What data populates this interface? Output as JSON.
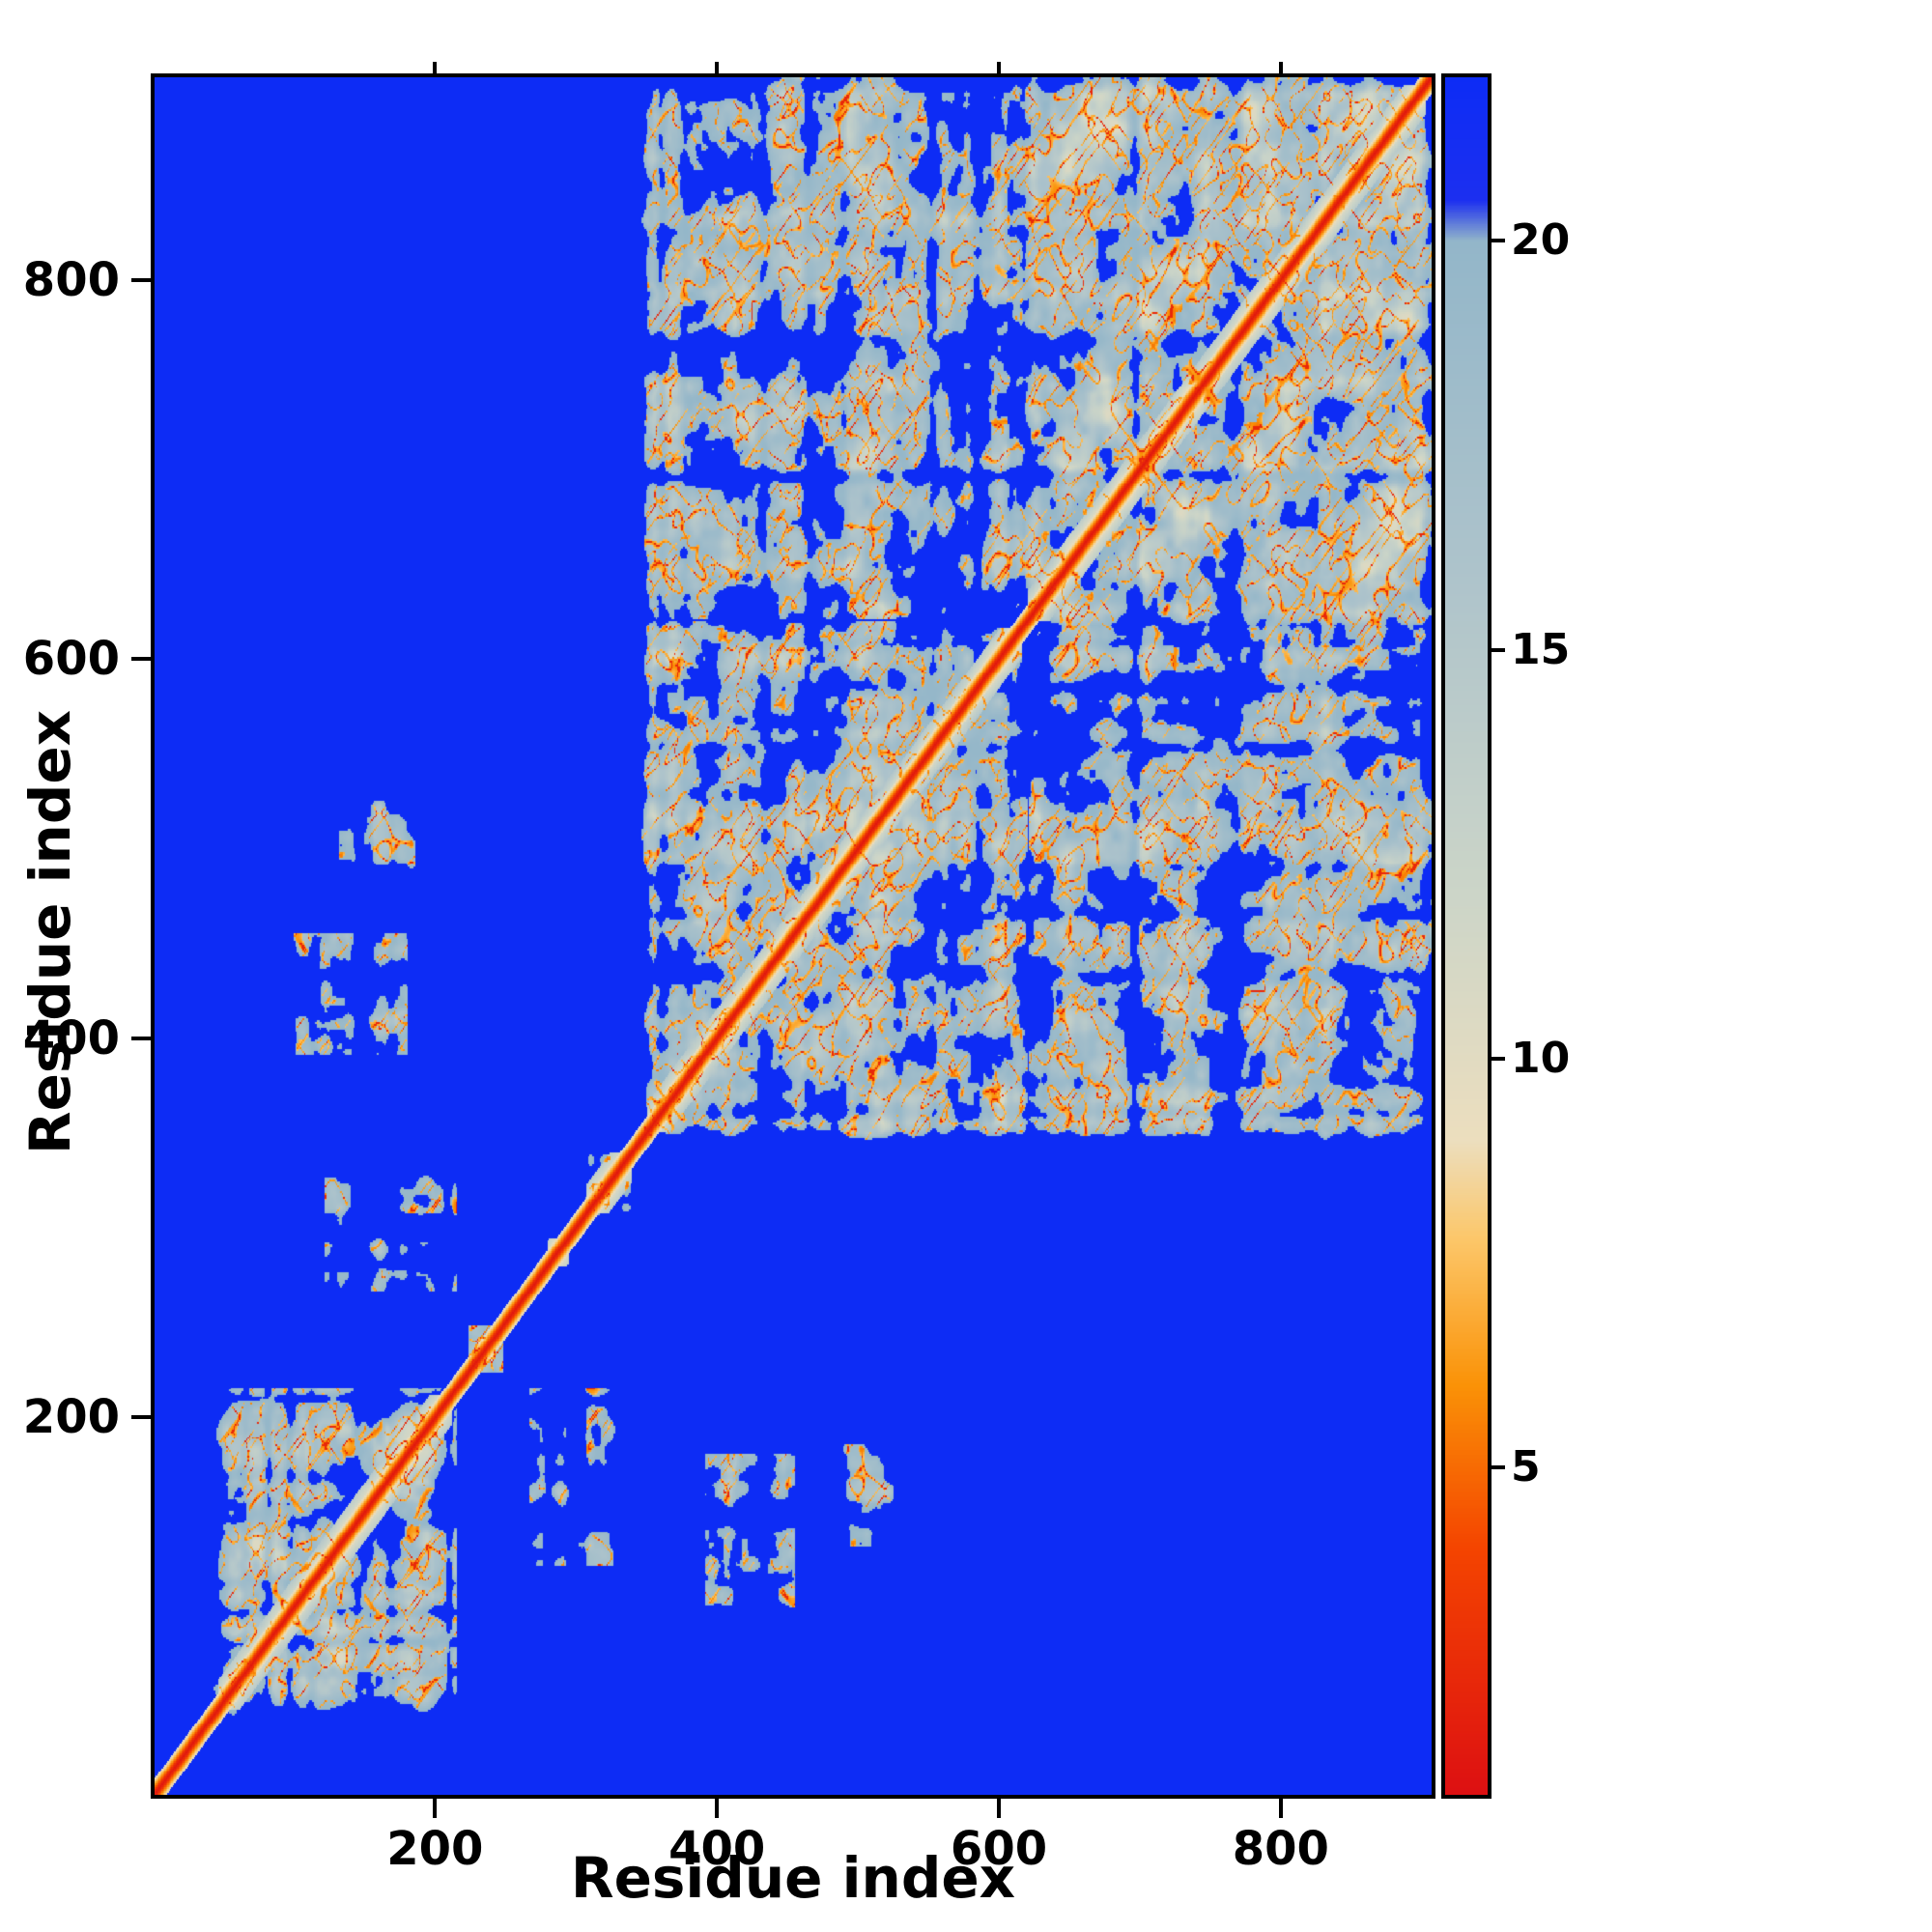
{
  "figure": {
    "background": "#ffffff",
    "frame_color": "#000000"
  },
  "chart_data": {
    "type": "heatmap",
    "title": "",
    "xlabel": "Residue index",
    "ylabel": "Residue index",
    "x_range": [
      1,
      907
    ],
    "y_range": [
      1,
      907
    ],
    "x_ticks": [
      200,
      400,
      600,
      800
    ],
    "y_ticks": [
      200,
      400,
      600,
      800
    ],
    "grid": false,
    "legend_position": "colorbar-right",
    "colorbar": {
      "ticks": [
        5,
        10,
        15,
        20
      ],
      "vmin": 1,
      "vmax": 22,
      "stops": [
        {
          "v": 1.0,
          "color": "#dd1012"
        },
        {
          "v": 4.0,
          "color": "#f44400"
        },
        {
          "v": 6.0,
          "color": "#fa9207"
        },
        {
          "v": 7.8,
          "color": "#fcc76a"
        },
        {
          "v": 9.0,
          "color": "#ecdebe"
        },
        {
          "v": 12.0,
          "color": "#ccd5c8"
        },
        {
          "v": 16.0,
          "color": "#adc3cb"
        },
        {
          "v": 20.0,
          "color": "#93b6c9"
        },
        {
          "v": 20.5,
          "color": "#1c2ff0"
        },
        {
          "v": 22.0,
          "color": "#0d2cf5"
        }
      ]
    },
    "matrix": {
      "size": 907,
      "description": "Symmetric inter-residue distance map: red main diagonal, speckled slate contact blocks along diagonal, blue background for distant pairs",
      "diagonal_value": 1,
      "background_value": 22,
      "domains": [
        {
          "range": [
            40,
            215
          ],
          "density": 0.58
        },
        {
          "range": [
            345,
            620
          ],
          "density": 0.62
        },
        {
          "range": [
            615,
            907
          ],
          "density": 0.6
        }
      ],
      "inter_domain_blocks": [
        {
          "x": [
            345,
            620
          ],
          "y": [
            620,
            907
          ],
          "density": 0.45
        },
        {
          "x": [
            130,
            215
          ],
          "y": [
            270,
            350
          ],
          "density": 0.13
        },
        {
          "x": [
            120,
            215
          ],
          "y": [
            265,
            345
          ],
          "density": 0.1
        },
        {
          "x": [
            390,
            455
          ],
          "y": [
            95,
            180
          ],
          "density": 0.07
        },
        {
          "x": [
            480,
            525
          ],
          "y": [
            130,
            185
          ],
          "density": 0.05
        }
      ],
      "linker_patches": [
        [
          222,
          248
        ],
        [
          272,
          300
        ],
        [
          300,
          345
        ]
      ]
    }
  }
}
